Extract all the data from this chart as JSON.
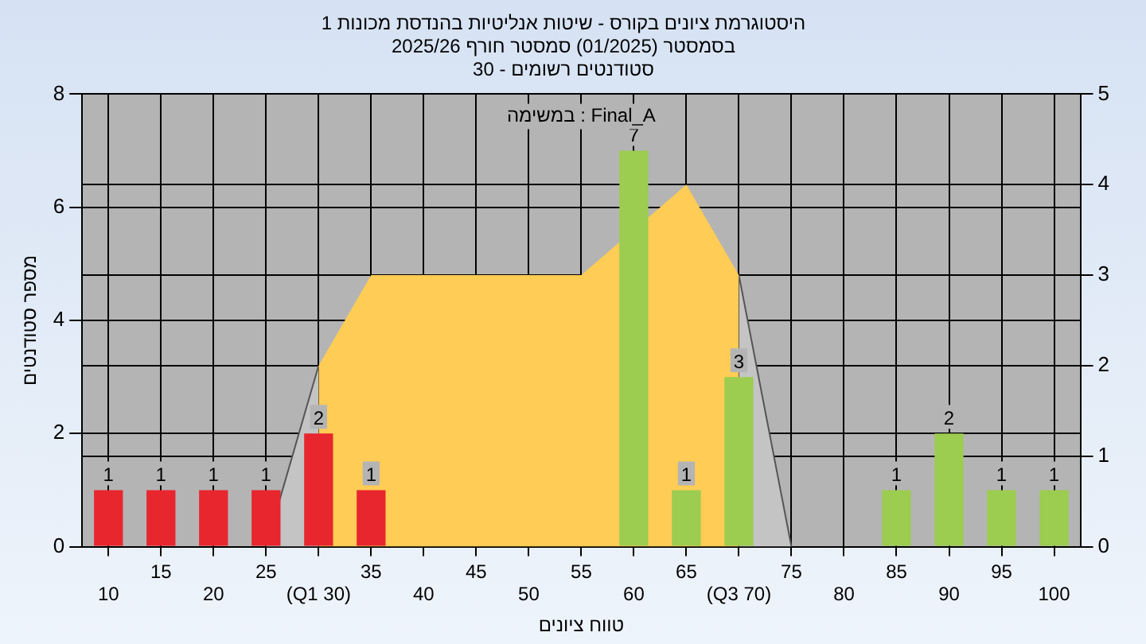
{
  "chart_data": {
    "type": "bar",
    "title": "היסטוגרמת ציונים בקורס - שיטות אנליטיות בהנדסת מכונות 1",
    "subtitle": "בסמסטר (01/2025) סמסטר חורף 2025/26\nסטודנטים רשומים - 30",
    "xlabel": "טווח ציונים",
    "ylabel": "מספר סטודנטים",
    "annotations": [
      "במשימה : Final_A"
    ],
    "categories": [
      "10",
      "15",
      "20",
      "25",
      "(Q1 30)",
      "35",
      "40",
      "45",
      "50",
      "55",
      "60",
      "65",
      "(Q3 70)",
      "75",
      "80",
      "85",
      "90",
      "95",
      "100"
    ],
    "series": [
      {
        "values": [
          1,
          1,
          1,
          1,
          2,
          1,
          0,
          0,
          0,
          0,
          7,
          1,
          3,
          0,
          0,
          1,
          2,
          1,
          1
        ],
        "colors": [
          "#e8262e",
          "#e8262e",
          "#e8262e",
          "#e8262e",
          "#e8262e",
          "#e8262e",
          "#e8262e",
          "#e8262e",
          "#e8262e",
          "#e8262e",
          "#9ccc50",
          "#9ccc50",
          "#9ccc50",
          "#9ccc50",
          "#9ccc50",
          "#9ccc50",
          "#9ccc50",
          "#9ccc50",
          "#9ccc50"
        ],
        "value_labels": [
          "1",
          "1",
          "1",
          "1",
          "2",
          "1",
          null,
          null,
          null,
          null,
          "7",
          "1",
          "3",
          null,
          null,
          "1",
          "2",
          "1",
          "1"
        ]
      },
      {
        "type": "area",
        "axis": "y2",
        "color": "#ffcc55",
        "values": [
          null,
          null,
          null,
          null,
          2,
          3,
          3,
          3,
          3,
          3,
          null,
          4,
          3,
          null,
          null,
          null,
          null,
          null,
          null
        ]
      },
      {
        "type": "area",
        "axis": "y2",
        "color": "#c4c4c4",
        "values": [
          null,
          null,
          null,
          0,
          2,
          null,
          null,
          null,
          null,
          null,
          null,
          null,
          3,
          0,
          null,
          null,
          null,
          null,
          null
        ]
      }
    ],
    "ylim": [
      0,
      8
    ],
    "yticks": [
      0,
      2,
      4,
      6,
      8
    ],
    "y2lim": [
      0,
      5
    ],
    "y2ticks": [
      0,
      1,
      2,
      3,
      4,
      5
    ],
    "grid": true,
    "legend": false
  }
}
